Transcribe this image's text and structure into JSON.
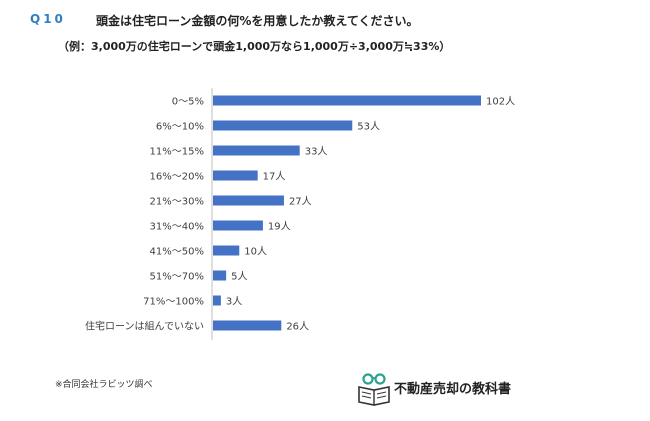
{
  "header": {
    "question_label": "Q10",
    "question_text": "頭金は住宅ローン金額の何%を用意したか教えてください。",
    "example_text": "（例：3,000万の住宅ローンで頭金1,000万なら1,000万÷3,000万≒33%）"
  },
  "chart_data": {
    "type": "bar",
    "orientation": "horizontal",
    "title": "",
    "xlabel": "",
    "ylabel": "",
    "categories": [
      "0〜5%",
      "6%〜10%",
      "11%〜15%",
      "16%〜20%",
      "21%〜30%",
      "31%〜40%",
      "41%〜50%",
      "51%〜70%",
      "71%〜100%",
      "住宅ローンは組んでいない"
    ],
    "values": [
      102,
      53,
      33,
      17,
      27,
      19,
      10,
      5,
      3,
      26
    ],
    "value_labels": [
      "102人",
      "53人",
      "33人",
      "17人",
      "27人",
      "19人",
      "10人",
      "5人",
      "3人",
      "26人"
    ],
    "bar_color": "#4472c4",
    "grid": false,
    "legend": "none"
  },
  "footer": {
    "source_note": "※合同会社ラビッツ調べ",
    "logo_text": "不動産売却の教科書",
    "logo_color": "#2aa38f"
  }
}
